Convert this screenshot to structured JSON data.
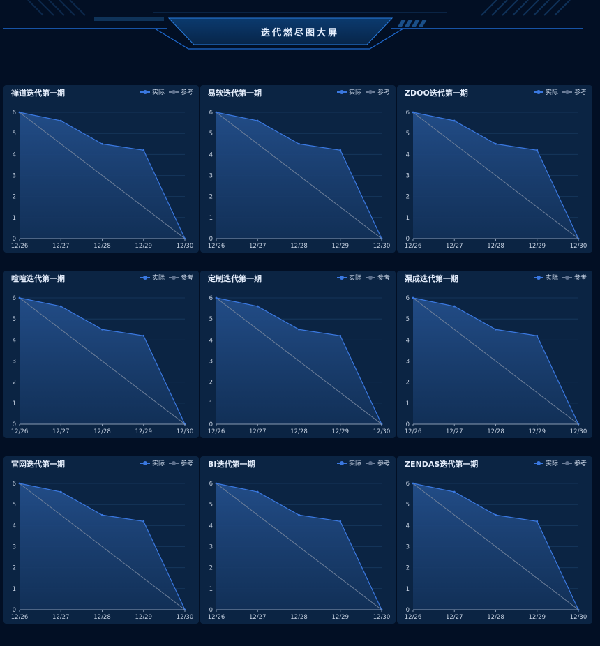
{
  "page": {
    "title": "迭代燃尽图大屏"
  },
  "legend": {
    "actual": "实际",
    "reference": "参考"
  },
  "colors": {
    "actual": "#3a78e0",
    "reference": "#6f809a",
    "area_top": "#234e8a",
    "area_bottom": "#123159"
  },
  "chart_data": [
    {
      "type": "line",
      "title": "禅道迭代第一期",
      "x": [
        "12/26",
        "12/27",
        "12/28",
        "12/29",
        "12/30"
      ],
      "ylim": [
        0,
        6
      ],
      "yticks": [
        0,
        1,
        2,
        3,
        4,
        5,
        6
      ],
      "series": [
        {
          "name": "实际",
          "values": [
            6,
            5.6,
            4.5,
            4.2,
            0
          ]
        },
        {
          "name": "参考",
          "values": [
            6,
            4.5,
            3,
            1.5,
            0
          ]
        }
      ]
    },
    {
      "type": "line",
      "title": "易软迭代第一期",
      "x": [
        "12/26",
        "12/27",
        "12/28",
        "12/29",
        "12/30"
      ],
      "ylim": [
        0,
        6
      ],
      "yticks": [
        0,
        1,
        2,
        3,
        4,
        5,
        6
      ],
      "series": [
        {
          "name": "实际",
          "values": [
            6,
            5.6,
            4.5,
            4.2,
            0
          ]
        },
        {
          "name": "参考",
          "values": [
            6,
            4.5,
            3,
            1.5,
            0
          ]
        }
      ]
    },
    {
      "type": "line",
      "title": "ZDOO迭代第一期",
      "x": [
        "12/26",
        "12/27",
        "12/28",
        "12/29",
        "12/30"
      ],
      "ylim": [
        0,
        6
      ],
      "yticks": [
        0,
        1,
        2,
        3,
        4,
        5,
        6
      ],
      "series": [
        {
          "name": "实际",
          "values": [
            6,
            5.6,
            4.5,
            4.2,
            0
          ]
        },
        {
          "name": "参考",
          "values": [
            6,
            4.5,
            3,
            1.5,
            0
          ]
        }
      ]
    },
    {
      "type": "line",
      "title": "喧喧迭代第一期",
      "x": [
        "12/26",
        "12/27",
        "12/28",
        "12/29",
        "12/30"
      ],
      "ylim": [
        0,
        6
      ],
      "yticks": [
        0,
        1,
        2,
        3,
        4,
        5,
        6
      ],
      "series": [
        {
          "name": "实际",
          "values": [
            6,
            5.6,
            4.5,
            4.2,
            0
          ]
        },
        {
          "name": "参考",
          "values": [
            6,
            4.5,
            3,
            1.5,
            0
          ]
        }
      ]
    },
    {
      "type": "line",
      "title": "定制迭代第一期",
      "x": [
        "12/26",
        "12/27",
        "12/28",
        "12/29",
        "12/30"
      ],
      "ylim": [
        0,
        6
      ],
      "yticks": [
        0,
        1,
        2,
        3,
        4,
        5,
        6
      ],
      "series": [
        {
          "name": "实际",
          "values": [
            6,
            5.6,
            4.5,
            4.2,
            0
          ]
        },
        {
          "name": "参考",
          "values": [
            6,
            4.5,
            3,
            1.5,
            0
          ]
        }
      ]
    },
    {
      "type": "line",
      "title": "渠成迭代第一期",
      "x": [
        "12/26",
        "12/27",
        "12/28",
        "12/29",
        "12/30"
      ],
      "ylim": [
        0,
        6
      ],
      "yticks": [
        0,
        1,
        2,
        3,
        4,
        5,
        6
      ],
      "series": [
        {
          "name": "实际",
          "values": [
            6,
            5.6,
            4.5,
            4.2,
            0
          ]
        },
        {
          "name": "参考",
          "values": [
            6,
            4.5,
            3,
            1.5,
            0
          ]
        }
      ]
    },
    {
      "type": "line",
      "title": "官网迭代第一期",
      "x": [
        "12/26",
        "12/27",
        "12/28",
        "12/29",
        "12/30"
      ],
      "ylim": [
        0,
        6
      ],
      "yticks": [
        0,
        1,
        2,
        3,
        4,
        5,
        6
      ],
      "series": [
        {
          "name": "实际",
          "values": [
            6,
            5.6,
            4.5,
            4.2,
            0
          ]
        },
        {
          "name": "参考",
          "values": [
            6,
            4.5,
            3,
            1.5,
            0
          ]
        }
      ]
    },
    {
      "type": "line",
      "title": "BI迭代第一期",
      "x": [
        "12/26",
        "12/27",
        "12/28",
        "12/29",
        "12/30"
      ],
      "ylim": [
        0,
        6
      ],
      "yticks": [
        0,
        1,
        2,
        3,
        4,
        5,
        6
      ],
      "series": [
        {
          "name": "实际",
          "values": [
            6,
            5.6,
            4.5,
            4.2,
            0
          ]
        },
        {
          "name": "参考",
          "values": [
            6,
            4.5,
            3,
            1.5,
            0
          ]
        }
      ]
    },
    {
      "type": "line",
      "title": "ZENDAS迭代第一期",
      "x": [
        "12/26",
        "12/27",
        "12/28",
        "12/29",
        "12/30"
      ],
      "ylim": [
        0,
        6
      ],
      "yticks": [
        0,
        1,
        2,
        3,
        4,
        5,
        6
      ],
      "series": [
        {
          "name": "实际",
          "values": [
            6,
            5.6,
            4.5,
            4.2,
            0
          ]
        },
        {
          "name": "参考",
          "values": [
            6,
            4.5,
            3,
            1.5,
            0
          ]
        }
      ]
    }
  ]
}
